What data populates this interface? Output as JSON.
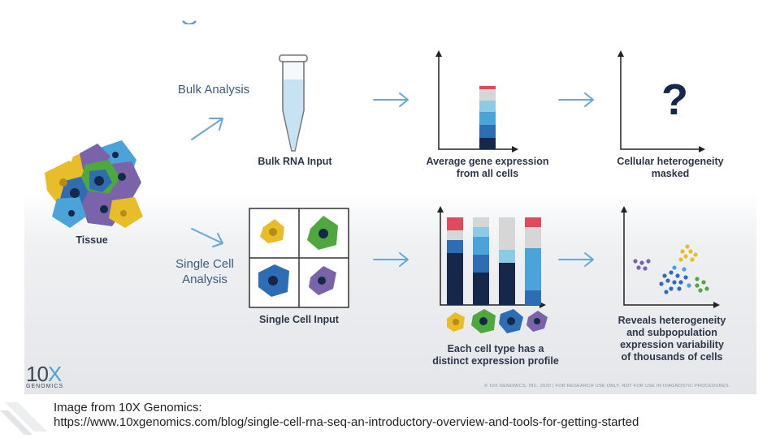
{
  "diagram": {
    "sections": {
      "bulk": "Bulk Analysis",
      "single_line1": "Single Cell",
      "single_line2": "Analysis"
    },
    "labels": {
      "tissue": "Tissue",
      "bulk_rna_input": "Bulk RNA Input",
      "avg_expr_line1": "Average gene expression",
      "avg_expr_line2": "from all cells",
      "masked_line1": "Cellular heterogeneity",
      "masked_line2": "masked",
      "single_cell_input": "Single Cell Input",
      "profile_line1": "Each cell type has a",
      "profile_line2": "distinct expression profile",
      "reveals_line1": "Reveals heterogeneity",
      "reveals_line2": "and subpopulation",
      "reveals_line3": "expression variability",
      "reveals_line4": "of thousands of cells"
    },
    "question_mark": "?",
    "logo_main": "10",
    "logo_x": "X",
    "logo_sub": "GENOMICS",
    "footer_note": "© 10X GENOMICS, INC. 2020   |   FOR RESEARCH USE ONLY. NOT FOR USE IN DIAGNOSTIC PROCEDURES.",
    "colors": {
      "navy": "#15284a",
      "blue": "#2e6db4",
      "sky": "#4aa3d9",
      "light": "#8ccbe6",
      "grey": "#d6d6d6",
      "red": "#e04a5c",
      "yellow": "#e8bd2a",
      "green": "#4fa83d",
      "purple": "#7a63a8",
      "arrow": "#6aa7d6"
    }
  },
  "caption": {
    "line1": "Image from 10X Genomics:",
    "line2": "https://www.10xgenomics.com/blog/single-cell-rna-seq-an-introductory-overview-and-tools-for-getting-started"
  }
}
